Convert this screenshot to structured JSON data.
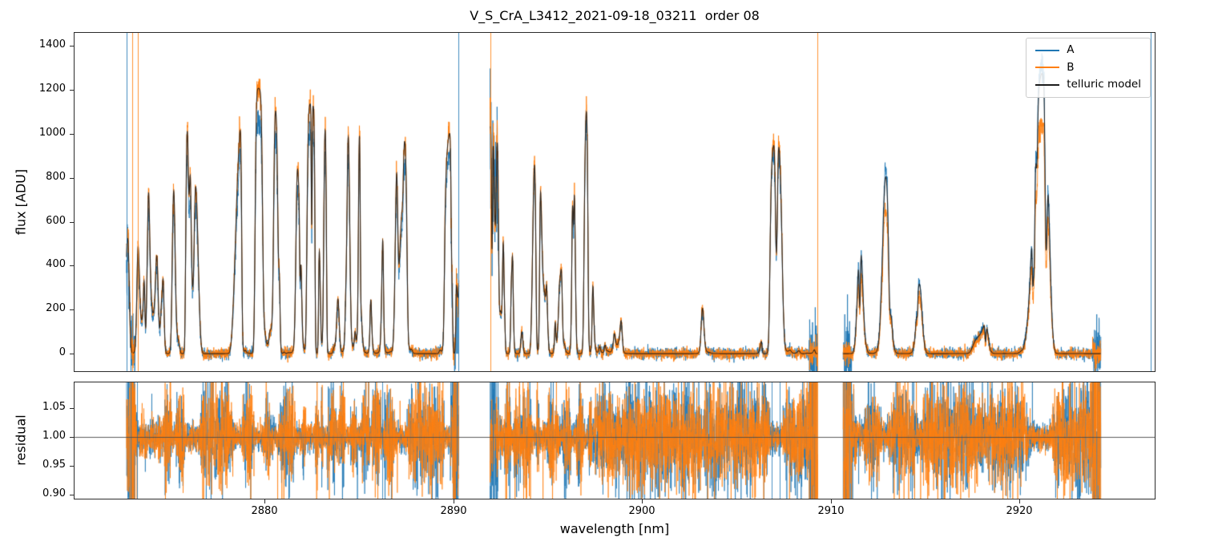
{
  "figure": {
    "background": "#ffffff",
    "text_color": "#000000",
    "spine_color": "#2b2b2b"
  },
  "chart_data": {
    "type": "line",
    "title": "V_S_CrA_L3412_2021-09-18_03211  order 08",
    "xlabel": "wavelength [nm]",
    "xlim": [
      2869.95,
      2927.15
    ],
    "xticks": [
      2880,
      2890,
      2900,
      2910,
      2920
    ],
    "xtick_labels": [
      "2880",
      "2890",
      "2900",
      "2910",
      "2920"
    ],
    "legend_position": "upper right",
    "grid": false,
    "panels": [
      {
        "name": "flux",
        "ylabel": "flux [ADU]",
        "ylim": [
          -80,
          1460
        ],
        "yticks": [
          0,
          200,
          400,
          600,
          800,
          1000,
          1200,
          1400
        ],
        "ytick_labels": [
          "0",
          "200",
          "400",
          "600",
          "800",
          "1000",
          "1200",
          "1400"
        ]
      },
      {
        "name": "residual",
        "ylabel": "residual",
        "ylim": [
          0.893,
          1.095
        ],
        "yticks": [
          0.9,
          0.95,
          1.0,
          1.05
        ],
        "ytick_labels": [
          "0.90",
          "0.95",
          "1.00",
          "1.05"
        ],
        "hline": 1.0,
        "hline_color": "#4a4a4a"
      }
    ],
    "series": [
      {
        "label": "A",
        "color": "#1f77b4"
      },
      {
        "label": "B",
        "color": "#ff7f0e"
      },
      {
        "label": "telluric model",
        "color": "#1c1c1c"
      }
    ],
    "segments": [
      [
        2872.7,
        2890.3
      ],
      [
        2891.95,
        2909.3
      ],
      [
        2910.65,
        2924.3
      ]
    ],
    "synthesis": {
      "seed": 42,
      "sample_step": 0.008,
      "continuum": [
        [
          2870,
          500
        ],
        [
          2872.7,
          560
        ],
        [
          2874,
          950
        ],
        [
          2875.5,
          1080
        ],
        [
          2877,
          1140
        ],
        [
          2879.5,
          1215
        ],
        [
          2881.5,
          1155
        ],
        [
          2883,
          1130
        ],
        [
          2884.5,
          1180
        ],
        [
          2886,
          1245
        ],
        [
          2887.5,
          1205
        ],
        [
          2889.5,
          1045
        ],
        [
          2891,
          990
        ],
        [
          2893.5,
          1100
        ],
        [
          2895,
          1150
        ],
        [
          2897.5,
          1160
        ],
        [
          2899,
          1110
        ],
        [
          2901,
          1060
        ],
        [
          2903,
          965
        ],
        [
          2905,
          930
        ],
        [
          2906.5,
          990
        ],
        [
          2908.3,
          1010
        ],
        [
          2909.5,
          995
        ],
        [
          2910.7,
          1365
        ],
        [
          2912,
          1350
        ],
        [
          2915,
          1330
        ],
        [
          2918.5,
          1385
        ],
        [
          2920.5,
          1405
        ],
        [
          2922.3,
          1300
        ],
        [
          2924.5,
          1400
        ],
        [
          2927.2,
          1400
        ]
      ],
      "scaleA": [
        [
          2870,
          0.86
        ],
        [
          2891,
          0.9
        ],
        [
          2891.9,
          0.95
        ],
        [
          2909.4,
          0.95
        ],
        [
          2910.6,
          1.03
        ],
        [
          2927.2,
          1.03
        ]
      ],
      "scaleB": [
        [
          2870,
          1.0
        ],
        [
          2891,
          1.0
        ],
        [
          2891.9,
          1.02
        ],
        [
          2909.4,
          1.02
        ],
        [
          2910.6,
          0.82
        ],
        [
          2927.2,
          0.82
        ]
      ],
      "noise_rel": 0.025,
      "noise_add": 12,
      "edge_zone": 0.45,
      "edge_noise_factor_A": 7,
      "edge_noise_factor_B": 2.5,
      "residual_noise": 0.012,
      "residual_spike_prob": 0.004,
      "line_regions": [
        {
          "range": [
            2871.5,
            2891.5
          ],
          "count": 90,
          "width": [
            0.04,
            0.12
          ],
          "tau": [
            0.3,
            6
          ]
        },
        {
          "range": [
            2877.15,
            2878.0
          ],
          "count": 3,
          "width": [
            0.25,
            0.4
          ],
          "tau": [
            8,
            18
          ]
        },
        {
          "range": [
            2888.2,
            2889.1
          ],
          "count": 3,
          "width": [
            0.2,
            0.35
          ],
          "tau": [
            6,
            14
          ]
        },
        {
          "range": [
            2891.8,
            2899.6
          ],
          "count": 42,
          "width": [
            0.04,
            0.12
          ],
          "tau": [
            0.3,
            6
          ]
        },
        {
          "range": [
            2899.7,
            2902.4
          ],
          "count": 8,
          "width": [
            0.3,
            0.55
          ],
          "tau": [
            5,
            22
          ]
        },
        {
          "range": [
            2902.4,
            2904.1
          ],
          "count": 8,
          "width": [
            0.06,
            0.16
          ],
          "tau": [
            0.5,
            5
          ]
        },
        {
          "range": [
            2904.2,
            2905.9
          ],
          "count": 5,
          "width": [
            0.3,
            0.5
          ],
          "tau": [
            5,
            18
          ]
        },
        {
          "range": [
            2905.9,
            2909.6
          ],
          "count": 14,
          "width": [
            0.05,
            0.18
          ],
          "tau": [
            0.5,
            8
          ]
        },
        {
          "range": [
            2910.2,
            2924.6
          ],
          "count": 14,
          "width": [
            0.22,
            0.45
          ],
          "tau": [
            2,
            12
          ]
        },
        {
          "range": [
            2922.7,
            2924.2
          ],
          "count": 4,
          "width": [
            0.2,
            0.35
          ],
          "tau": [
            6,
            16
          ]
        },
        {
          "range": [
            2871,
            2927
          ],
          "count": 130,
          "width": [
            0.02,
            0.05
          ],
          "tau": [
            0.05,
            0.9
          ]
        }
      ],
      "artifactsA_flux": [
        2872.72,
        2890.26,
        2926.95
      ],
      "artifactsB_flux": [
        2873.02,
        2873.3,
        2891.97,
        2909.3
      ],
      "artifactsA_res": [
        2872.9,
        2873.25,
        2886.25,
        2890.2,
        2892.1,
        2906.85,
        2907.3
      ],
      "artifactsB_res": [
        2909.28,
        2919.35
      ]
    }
  }
}
